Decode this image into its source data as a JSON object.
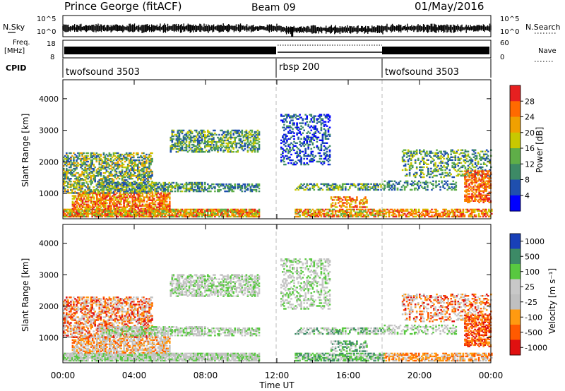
{
  "header": {
    "title": "Prince George (fitACF)",
    "beam": "Beam 09",
    "date": "01/May/2016"
  },
  "noise_panel": {
    "left_label": "N.Sky",
    "left_ticks": [
      "10^5",
      "10^0"
    ],
    "right_ticks": [
      "10^5",
      "10^0"
    ],
    "right_label": "N.Search"
  },
  "freq_panel": {
    "left_label_1": "Freq.",
    "left_label_2": "[MHz]",
    "left_ticks": [
      "18",
      "8"
    ],
    "right_ticks": [
      "60",
      "0"
    ],
    "right_label": "Nave"
  },
  "cpid": {
    "label": "CPID",
    "segments": [
      {
        "name": "twofsound 3503",
        "start_hour": 0
      },
      {
        "name": "rbsp 200",
        "start_hour": 12.1
      },
      {
        "name": "twofsound 3503",
        "start_hour": 18.2
      }
    ]
  },
  "colors": {
    "power": [
      "#0000ff",
      "#1f4fae",
      "#3d8a66",
      "#5fae48",
      "#c8c800",
      "#f0a000",
      "#ff6a00",
      "#e62020"
    ],
    "velocity": [
      "#e01010",
      "#ff5a00",
      "#ff9a10",
      "#c0c0c0",
      "#c8c8c8",
      "#58c840",
      "#3c8a66",
      "#1840b8"
    ]
  },
  "chart_data": [
    {
      "type": "heatmap",
      "title": "Power",
      "ylabel": "Slant Range [km]",
      "xlabel": "Time UT",
      "ylim": [
        200,
        4600
      ],
      "y_ticks": [
        1000,
        2000,
        3000,
        4000
      ],
      "xlim": [
        0,
        24
      ],
      "x_tick_labels": [
        "00:00",
        "04:00",
        "08:00",
        "12:00",
        "16:00",
        "20:00",
        "00:00"
      ],
      "colorbar": {
        "label": "Power [dB]",
        "ticks": [
          "28",
          "24",
          "20",
          "16",
          "12",
          "8",
          "4"
        ]
      }
    },
    {
      "type": "heatmap",
      "title": "Velocity",
      "ylabel": "Slant Range [km]",
      "xlabel": "Time UT",
      "ylim": [
        200,
        4600
      ],
      "y_ticks": [
        1000,
        2000,
        3000,
        4000
      ],
      "xlim": [
        0,
        24
      ],
      "x_tick_labels": [
        "00:00",
        "04:00",
        "08:00",
        "12:00",
        "16:00",
        "20:00",
        "00:00"
      ],
      "colorbar": {
        "label": "Velocity [m s⁻¹]",
        "ticks": [
          "1000",
          "500",
          "100",
          "25",
          "-25",
          "-100",
          "-500",
          "-1000"
        ]
      }
    }
  ],
  "x_axis_title": "Time UT"
}
